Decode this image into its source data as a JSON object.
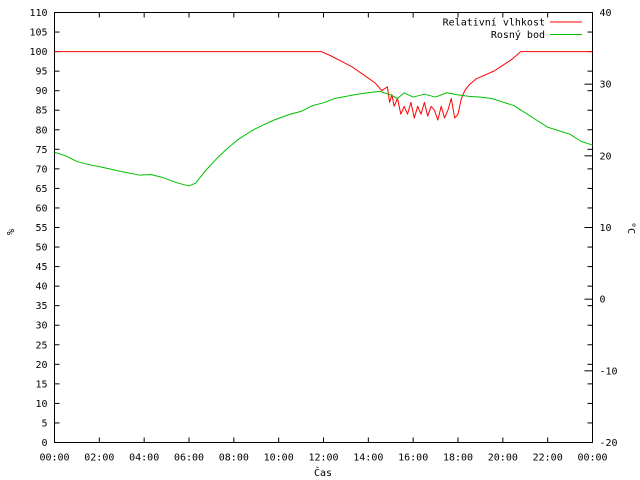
{
  "chart_data": {
    "type": "line",
    "xlabel": "Čas",
    "ylabel_left": "%",
    "ylabel_right": "°C",
    "xticks": [
      "00:00",
      "02:00",
      "04:00",
      "06:00",
      "08:00",
      "10:00",
      "12:00",
      "14:00",
      "16:00",
      "18:00",
      "20:00",
      "22:00",
      "00:00"
    ],
    "xlim": [
      0,
      24
    ],
    "ylim_left": [
      0,
      110
    ],
    "yticks_left_step": 5,
    "ylim_right": [
      -20,
      40
    ],
    "yticks_right_step": 10,
    "grid": false,
    "legend_position": "top-right",
    "series": [
      {
        "name": "Relativní vlhkost",
        "axis": "left",
        "color": "#ff0000",
        "points": [
          [
            0,
            100
          ],
          [
            11.9,
            100
          ],
          [
            12.3,
            99
          ],
          [
            12.8,
            97.5
          ],
          [
            13.3,
            96
          ],
          [
            13.8,
            94
          ],
          [
            14.3,
            92
          ],
          [
            14.6,
            90
          ],
          [
            14.85,
            91
          ],
          [
            14.95,
            87
          ],
          [
            15.05,
            89
          ],
          [
            15.15,
            86
          ],
          [
            15.3,
            88
          ],
          [
            15.45,
            84
          ],
          [
            15.6,
            86
          ],
          [
            15.75,
            84
          ],
          [
            15.9,
            87
          ],
          [
            16.05,
            83
          ],
          [
            16.2,
            86
          ],
          [
            16.35,
            84
          ],
          [
            16.5,
            87
          ],
          [
            16.65,
            83.5
          ],
          [
            16.8,
            86
          ],
          [
            16.95,
            85
          ],
          [
            17.1,
            82.5
          ],
          [
            17.25,
            86
          ],
          [
            17.4,
            83
          ],
          [
            17.55,
            85
          ],
          [
            17.7,
            88
          ],
          [
            17.85,
            83
          ],
          [
            18.0,
            84
          ],
          [
            18.15,
            88
          ],
          [
            18.3,
            90
          ],
          [
            18.5,
            91.5
          ],
          [
            18.8,
            93
          ],
          [
            19.2,
            94
          ],
          [
            19.6,
            95
          ],
          [
            20.0,
            96.5
          ],
          [
            20.4,
            98
          ],
          [
            20.8,
            100
          ],
          [
            24,
            100
          ]
        ]
      },
      {
        "name": "Rosný bod",
        "axis": "right",
        "color": "#00c000",
        "points": [
          [
            0,
            20.5
          ],
          [
            0.5,
            20
          ],
          [
            1,
            19.2
          ],
          [
            1.5,
            18.8
          ],
          [
            2,
            18.5
          ],
          [
            3,
            17.8
          ],
          [
            3.8,
            17.3
          ],
          [
            4.3,
            17.4
          ],
          [
            4.8,
            17
          ],
          [
            5.5,
            16.2
          ],
          [
            6,
            15.8
          ],
          [
            6.3,
            16.2
          ],
          [
            6.7,
            17.8
          ],
          [
            7.2,
            19.5
          ],
          [
            7.7,
            21
          ],
          [
            8.2,
            22.3
          ],
          [
            8.8,
            23.5
          ],
          [
            9.3,
            24.3
          ],
          [
            9.8,
            25
          ],
          [
            10.5,
            25.8
          ],
          [
            11,
            26.2
          ],
          [
            11.5,
            27
          ],
          [
            12,
            27.4
          ],
          [
            12.5,
            28
          ],
          [
            13,
            28.3
          ],
          [
            13.5,
            28.6
          ],
          [
            14,
            28.8
          ],
          [
            14.5,
            29
          ],
          [
            15,
            28.5
          ],
          [
            15.3,
            28
          ],
          [
            15.6,
            28.8
          ],
          [
            16,
            28.2
          ],
          [
            16.5,
            28.6
          ],
          [
            17,
            28.2
          ],
          [
            17.5,
            28.8
          ],
          [
            18,
            28.5
          ],
          [
            18.5,
            28.3
          ],
          [
            19,
            28.2
          ],
          [
            19.5,
            28
          ],
          [
            20,
            27.5
          ],
          [
            20.5,
            27
          ],
          [
            21,
            26
          ],
          [
            21.5,
            25
          ],
          [
            22,
            24
          ],
          [
            22.5,
            23.5
          ],
          [
            23,
            23
          ],
          [
            23.5,
            22
          ],
          [
            24,
            21.5
          ]
        ]
      }
    ]
  }
}
